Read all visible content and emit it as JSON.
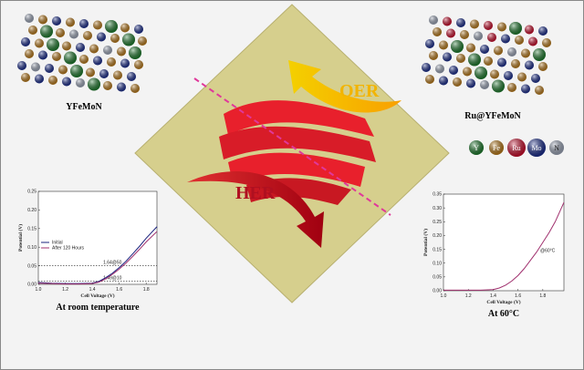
{
  "structures": [
    {
      "label": "YFeMoN"
    },
    {
      "label": "Ru@YFeMoN"
    }
  ],
  "reactions": {
    "top": "OER",
    "bottom": "HER"
  },
  "elements": [
    {
      "symbol": "Y",
      "color": "#1f7a2e"
    },
    {
      "symbol": "Fe",
      "color": "#b87a1c"
    },
    {
      "symbol": "Ru",
      "color": "#c8102e"
    },
    {
      "symbol": "Mo",
      "color": "#1c2e8c"
    },
    {
      "symbol": "N",
      "color": "#9aa3b5"
    }
  ],
  "chart_data": [
    {
      "type": "line",
      "title": "At room temperature",
      "x_label": "Cell Voltage (V)",
      "y_label": "Potential (V)",
      "x": [
        1.0,
        1.1,
        1.2,
        1.3,
        1.4,
        1.45,
        1.5,
        1.55,
        1.6,
        1.65,
        1.7,
        1.75,
        1.8,
        1.88
      ],
      "series": [
        {
          "name": "Initial",
          "color": "#1a237e",
          "values": [
            0.005,
            0.003,
            0.002,
            0.002,
            0.003,
            0.008,
            0.018,
            0.03,
            0.045,
            0.062,
            0.082,
            0.102,
            0.124,
            0.155
          ]
        },
        {
          "name": "After 120 Hours",
          "color": "#a0306e",
          "values": [
            0.003,
            0.002,
            0.001,
            0.001,
            0.002,
            0.006,
            0.015,
            0.027,
            0.041,
            0.057,
            0.075,
            0.094,
            0.114,
            0.142
          ]
        }
      ],
      "xlim": [
        1.0,
        1.88
      ],
      "xticks": [
        {
          "value": 1.0,
          "label": "1.0"
        },
        1.2,
        1.4,
        1.6,
        1.8
      ],
      "ylim": [
        0,
        0.25
      ],
      "yticks": [
        {
          "value": 0,
          "label": "0.00"
        },
        0.05,
        {
          "value": 0.1,
          "label": "0.10"
        },
        0.15,
        {
          "value": 0.2,
          "label": "0.20"
        },
        0.25
      ],
      "legend": "upper left",
      "annotations": [
        {
          "text": "1.64@50",
          "y": 0.05
        },
        {
          "text": "1.49@10",
          "y": 0.008
        }
      ]
    },
    {
      "type": "line",
      "title": "At 60°C",
      "x_label": "Cell Voltage (V)",
      "y_label": "Potential (V)",
      "x": [
        1.0,
        1.2,
        1.3,
        1.4,
        1.45,
        1.5,
        1.55,
        1.6,
        1.65,
        1.7,
        1.75,
        1.8,
        1.85,
        1.9,
        1.97
      ],
      "series": [
        {
          "name": "@60°C",
          "color": "#a0306e",
          "values": [
            0.002,
            0.002,
            0.002,
            0.004,
            0.01,
            0.02,
            0.035,
            0.055,
            0.08,
            0.11,
            0.14,
            0.175,
            0.21,
            0.25,
            0.32
          ]
        }
      ],
      "xlim": [
        1.0,
        1.97
      ],
      "xticks": [
        {
          "value": 1.0,
          "label": "1.0"
        },
        1.2,
        1.4,
        1.6,
        1.8
      ],
      "ylim": [
        0,
        0.35
      ],
      "yticks": [
        {
          "value": 0,
          "label": "0.00"
        },
        0.05,
        {
          "value": 0.1,
          "label": "0.10"
        },
        0.15,
        {
          "value": 0.2,
          "label": "0.20"
        },
        0.25,
        {
          "value": 0.3,
          "label": "0.30"
        },
        0.35
      ],
      "legend": "label"
    }
  ]
}
